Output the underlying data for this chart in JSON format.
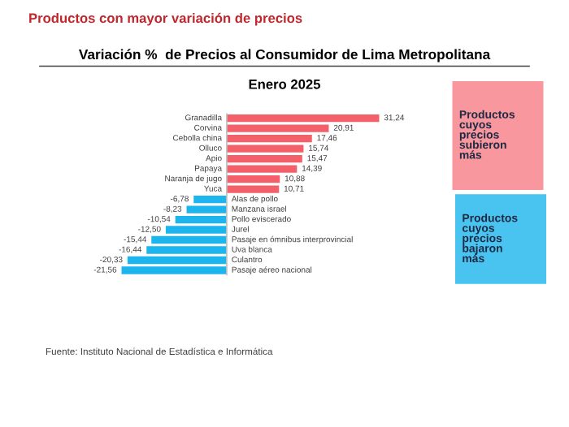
{
  "chart_data": {
    "type": "bar",
    "orientation": "horizontal",
    "title": "Variación %  de Precios al Consumidor de Lima Metropolitana",
    "subtitle": "Enero 2025",
    "categories": [
      "Granadilla",
      "Corvina",
      "Cebolla china",
      "Olluco",
      "Apio",
      "Papaya",
      "Naranja de jugo",
      "Yuca",
      "Alas de pollo",
      "Manzana israel",
      "Pollo eviscerado",
      "Jurel",
      "Pasaje en ómnibus interprovincial",
      "Uva blanca",
      "Culantro",
      "Pasaje aéreo nacional"
    ],
    "values": [
      31.24,
      20.91,
      17.46,
      15.74,
      15.47,
      14.39,
      10.88,
      10.71,
      -6.78,
      -8.23,
      -10.54,
      -12.5,
      -15.44,
      -16.44,
      -20.33,
      -21.56
    ],
    "value_labels": [
      "31,24",
      "20,91",
      "17,46",
      "15,74",
      "15,47",
      "14,39",
      "10,88",
      "10,71",
      "-6,78",
      "-8,23",
      "-10,54",
      "-12,50",
      "-15,44",
      "-16,44",
      "-20,33",
      "-21,56"
    ],
    "colors": [
      "#f4606a",
      "#f4606a",
      "#f4606a",
      "#f4606a",
      "#f4606a",
      "#f4606a",
      "#f4606a",
      "#f4606a",
      "#1cb5ee",
      "#1cb5ee",
      "#1cb5ee",
      "#1cb5ee",
      "#1cb5ee",
      "#1cb5ee",
      "#1cb5ee",
      "#1cb5ee"
    ],
    "annotations": [
      "Productos con mayor variación de precios",
      "Productos\ncuyos\nprecios\nsubieron\nmás",
      "Productos\ncuyos\nprecios\nbajaron\nmás",
      "Fuente: Instituto Nacional de Estadística e Informática"
    ]
  }
}
